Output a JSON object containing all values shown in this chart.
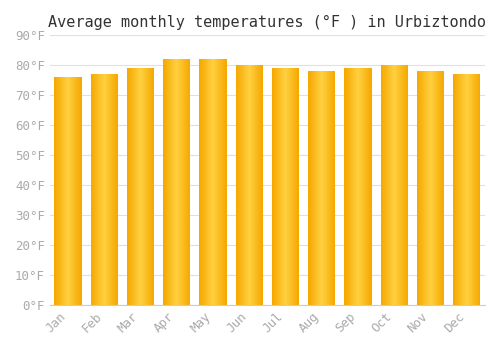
{
  "title": "Average monthly temperatures (°F ) in Urbiztondo",
  "months": [
    "Jan",
    "Feb",
    "Mar",
    "Apr",
    "May",
    "Jun",
    "Jul",
    "Aug",
    "Sep",
    "Oct",
    "Nov",
    "Dec"
  ],
  "values": [
    76,
    77,
    79,
    82,
    82,
    80,
    79,
    78,
    79,
    80,
    78,
    77
  ],
  "bar_color_left": "#F5A800",
  "bar_color_mid": "#FFD040",
  "bar_color_right": "#F5A800",
  "background_color": "#FFFFFF",
  "grid_color": "#E0E0E0",
  "ylim": [
    0,
    90
  ],
  "yticks": [
    0,
    10,
    20,
    30,
    40,
    50,
    60,
    70,
    80,
    90
  ],
  "ytick_labels": [
    "0°F",
    "10°F",
    "20°F",
    "30°F",
    "40°F",
    "50°F",
    "60°F",
    "70°F",
    "80°F",
    "90°F"
  ],
  "title_fontsize": 11,
  "tick_fontsize": 9,
  "tick_font_color": "#AAAAAA",
  "bar_width": 0.75,
  "n_grad": 40
}
